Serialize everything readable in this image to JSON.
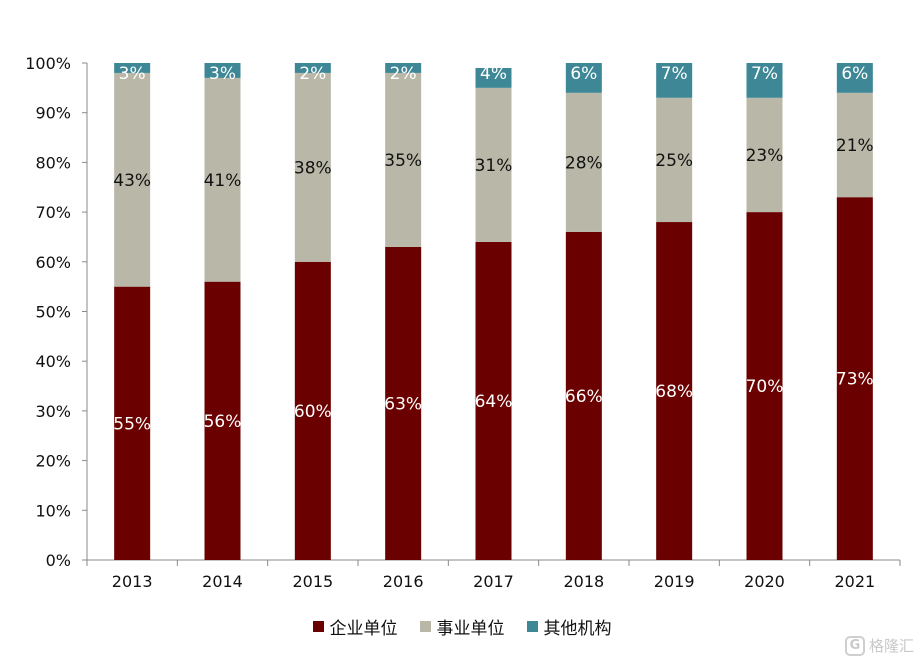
{
  "chart_data": {
    "type": "bar",
    "stacked": true,
    "categories": [
      "2013",
      "2014",
      "2015",
      "2016",
      "2017",
      "2018",
      "2019",
      "2020",
      "2021"
    ],
    "series": [
      {
        "name": "企业单位",
        "color": "#6b0000",
        "values": [
          55,
          56,
          60,
          63,
          64,
          66,
          68,
          70,
          73
        ]
      },
      {
        "name": "事业单位",
        "color": "#b9b8a8",
        "values": [
          43,
          41,
          38,
          35,
          31,
          28,
          25,
          23,
          21
        ]
      },
      {
        "name": "其他机构",
        "color": "#3e8796",
        "values": [
          3,
          3,
          2,
          2,
          4,
          6,
          7,
          7,
          6
        ]
      }
    ],
    "ylim": [
      0,
      100
    ],
    "yticks": [
      "0%",
      "10%",
      "20%",
      "30%",
      "40%",
      "50%",
      "60%",
      "70%",
      "80%",
      "90%",
      "100%"
    ],
    "grid": false,
    "legend_position": "bottom"
  },
  "watermark": {
    "logo": "G",
    "text": "格隆汇"
  }
}
